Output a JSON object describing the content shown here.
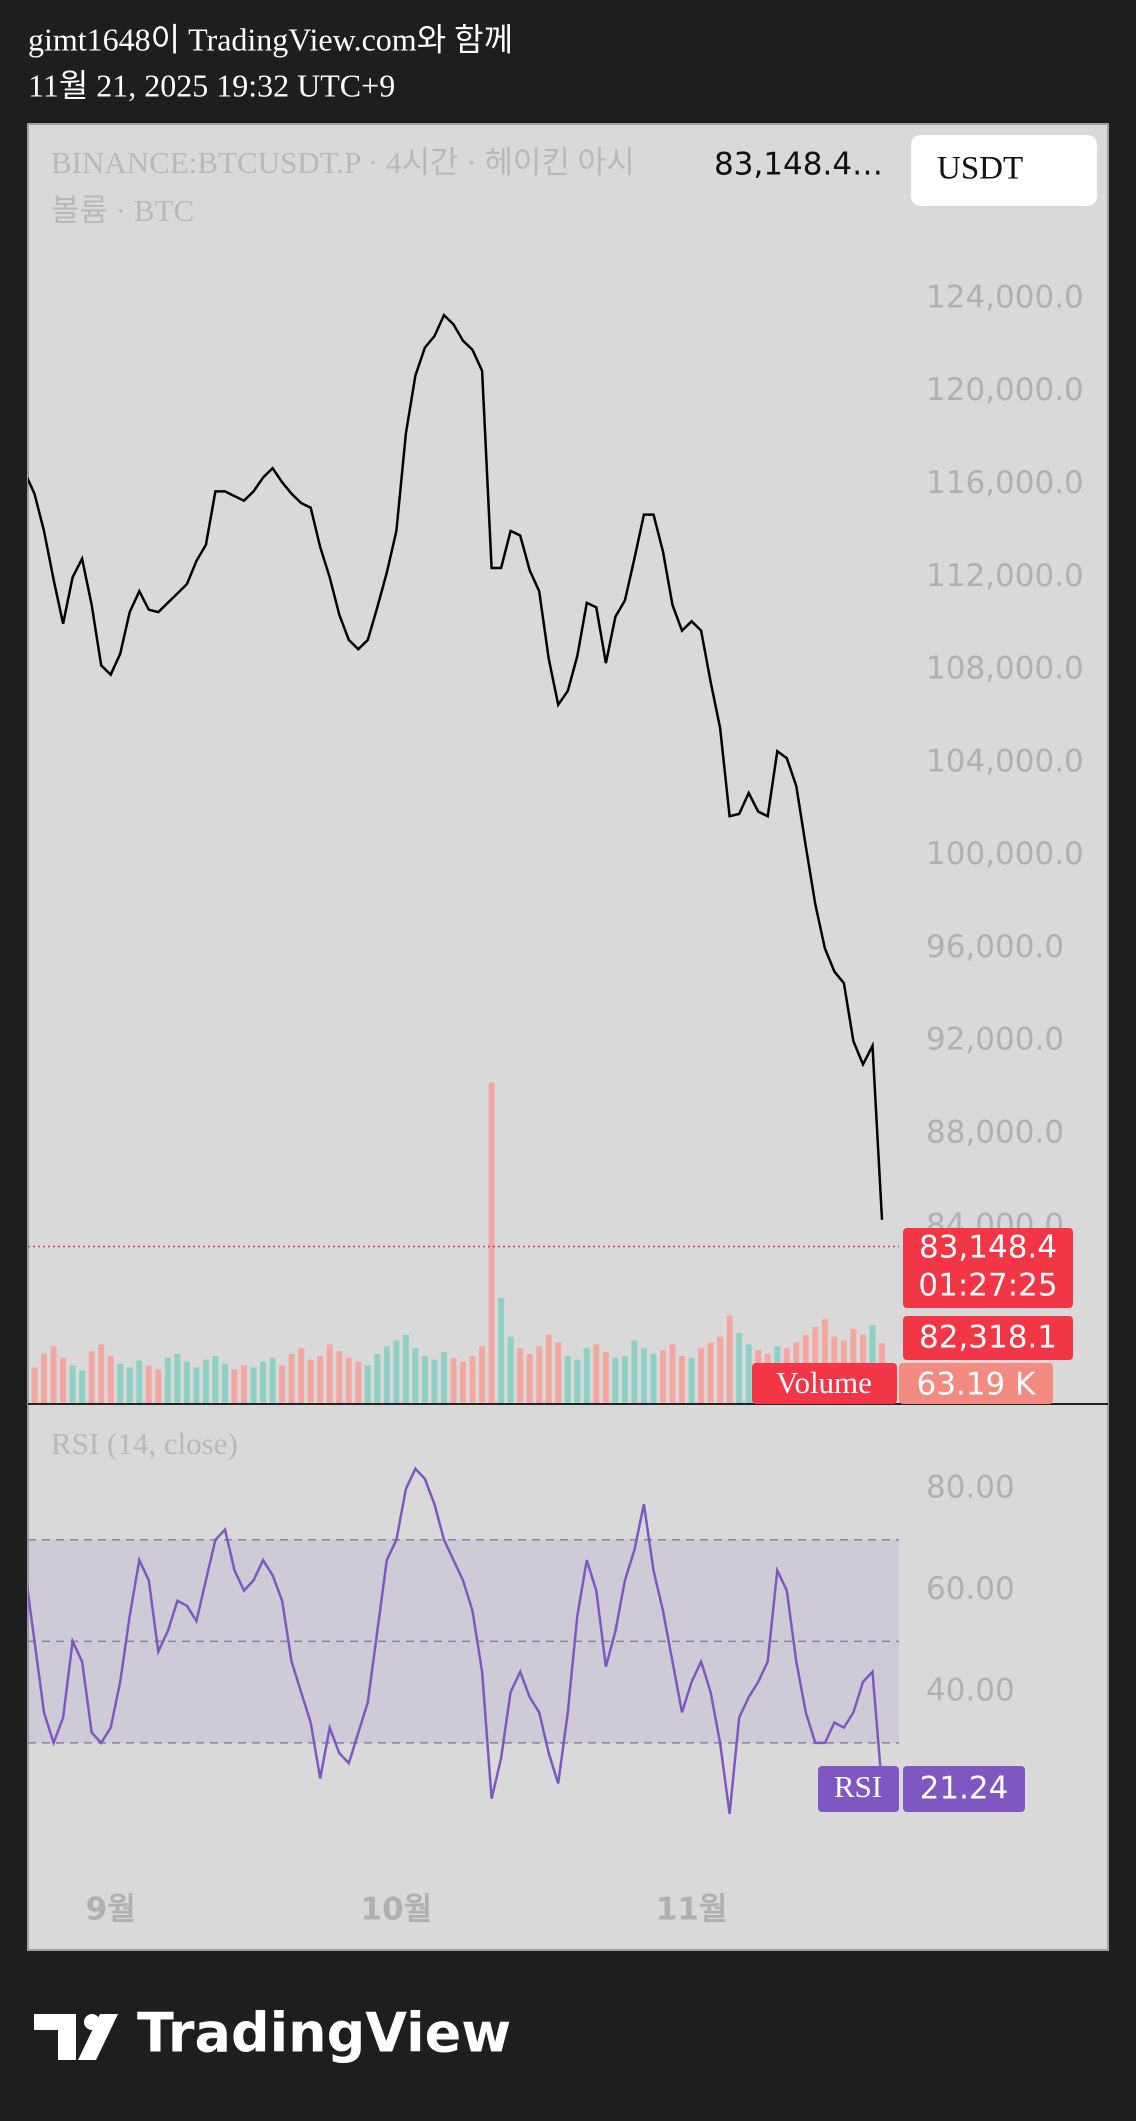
{
  "header": {
    "line1": "gimt1648이 TradingView.com와 함께",
    "line2": "11월 21, 2025 19:32 UTC+9"
  },
  "footer": {
    "brand": "TradingView"
  },
  "chart_data": {
    "type": "line",
    "title": "BINANCE:BTCUSDT.P · 4시간 · 헤이킨 아시",
    "header_value": "83,148.4…",
    "subtitle": "볼륨 · BTC",
    "currency": "USDT",
    "categories": [
      null,
      null,
      null,
      null,
      null,
      null,
      null,
      null,
      null,
      "9월",
      null,
      null,
      null,
      null,
      null,
      null,
      null,
      null,
      null,
      null,
      null,
      null,
      null,
      null,
      null,
      null,
      null,
      null,
      null,
      null,
      null,
      null,
      null,
      null,
      null,
      null,
      null,
      null,
      null,
      "10월",
      null,
      null,
      null,
      null,
      null,
      null,
      null,
      null,
      null,
      null,
      null,
      null,
      null,
      null,
      null,
      null,
      null,
      null,
      null,
      null,
      null,
      null,
      null,
      null,
      null,
      null,
      null,
      null,
      null,
      null,
      "11월",
      null,
      null,
      null,
      null,
      null,
      null,
      null,
      null,
      null,
      null,
      null,
      null,
      null,
      null,
      null,
      null,
      null,
      null,
      null,
      null
    ],
    "series": [
      {
        "color": "#000000",
        "values": [
          116500,
          115600,
          114000,
          111900,
          110000,
          112000,
          112800,
          110800,
          108200,
          107800,
          108700,
          110500,
          111400,
          110600,
          110500,
          110900,
          111300,
          111700,
          112700,
          113400,
          115700,
          115700,
          115500,
          115300,
          115700,
          116300,
          116700,
          116100,
          115600,
          115200,
          115000,
          113300,
          112000,
          110400,
          109300,
          108900,
          109300,
          110700,
          112200,
          114000,
          118200,
          120700,
          121900,
          122400,
          123300,
          122900,
          122200,
          121800,
          120900,
          112400,
          112400,
          114000,
          113800,
          112300,
          111400,
          108500,
          106500,
          107100,
          108600,
          110900,
          110700,
          108300,
          110300,
          111000,
          112800,
          114700,
          114700,
          113100,
          110800,
          109700,
          110100,
          109700,
          107500,
          105500,
          101700,
          101800,
          102700,
          101900,
          101700,
          104500,
          104200,
          103000,
          100400,
          97900,
          96000,
          95000,
          94500,
          92000,
          91000,
          91800,
          84300
        ]
      }
    ],
    "ylim": [
      76360,
      131540
    ],
    "yticks": [
      {
        "value": 84000,
        "label": "84,000.0"
      },
      {
        "value": 88000,
        "label": "88,000.0"
      },
      {
        "value": 92000,
        "label": "92,000.0"
      },
      {
        "value": 96000,
        "label": "96,000.0"
      },
      {
        "value": 100000,
        "label": "100,000.0"
      },
      {
        "value": 104000,
        "label": "104,000.0"
      },
      {
        "value": 108000,
        "label": "108,000.0"
      },
      {
        "value": 112000,
        "label": "112,000.0"
      },
      {
        "value": 116000,
        "label": "116,000.0"
      },
      {
        "value": 120000,
        "label": "120,000.0"
      },
      {
        "value": 124000,
        "label": "124,000.0"
      }
    ],
    "grid": false,
    "last_price": {
      "value": 83148.4,
      "label": "83,148.4",
      "color": "#f23645"
    },
    "countdown": "01:27:25",
    "marker_label": "82,318.1",
    "volume": {
      "name": "Volume",
      "up_color": "#8fd0c4",
      "down_color": "#f4a7a1",
      "ylim": [
        0,
        1330000
      ],
      "current_value_label": "63.19 K",
      "values": [
        45000,
        38000,
        52000,
        60000,
        48000,
        40000,
        35000,
        55000,
        62000,
        50000,
        42000,
        38000,
        45000,
        40000,
        36000,
        48000,
        52000,
        44000,
        38000,
        46000,
        50000,
        42000,
        36000,
        40000,
        38000,
        44000,
        48000,
        40000,
        52000,
        58000,
        46000,
        50000,
        62000,
        55000,
        48000,
        44000,
        40000,
        52000,
        60000,
        66000,
        72000,
        58000,
        50000,
        46000,
        54000,
        48000,
        44000,
        50000,
        60000,
        334000,
        110000,
        70000,
        58000,
        52000,
        60000,
        72000,
        64000,
        50000,
        46000,
        58000,
        62000,
        54000,
        48000,
        50000,
        66000,
        58000,
        52000,
        56000,
        62000,
        50000,
        48000,
        58000,
        64000,
        70000,
        92000,
        74000,
        62000,
        56000,
        52000,
        60000,
        58000,
        64000,
        72000,
        80000,
        88000,
        70000,
        66000,
        78000,
        72000,
        82000,
        63190
      ]
    },
    "rsi": {
      "title": "RSI (14, close)",
      "name": "RSI",
      "color": "#7e57c2",
      "values": [
        64,
        50,
        36,
        30,
        35,
        50,
        46,
        32,
        30,
        33,
        42,
        55,
        66,
        62,
        48,
        52,
        58,
        57,
        54,
        62,
        70,
        72,
        64,
        60,
        62,
        66,
        63,
        58,
        46,
        40,
        34,
        23,
        33,
        28,
        26,
        32,
        38,
        52,
        66,
        70,
        80,
        84,
        82,
        77,
        70,
        66,
        62,
        56,
        44,
        19,
        27,
        40,
        44,
        39,
        36,
        28,
        22,
        36,
        55,
        66,
        60,
        45,
        52,
        62,
        68,
        77,
        64,
        56,
        46,
        36,
        42,
        46,
        40,
        30,
        16,
        35,
        39,
        42,
        46,
        64,
        60,
        46,
        36,
        30,
        30,
        34,
        33,
        36,
        42,
        44,
        21.24
      ],
      "ylim": [
        -10.8,
        96.75
      ],
      "yticks": [
        {
          "value": 40,
          "label": "40.00"
        },
        {
          "value": 60,
          "label": "60.00"
        },
        {
          "value": 80,
          "label": "80.00"
        }
      ],
      "levels": [
        70,
        50,
        30
      ],
      "band": [
        30,
        70
      ]
    }
  }
}
